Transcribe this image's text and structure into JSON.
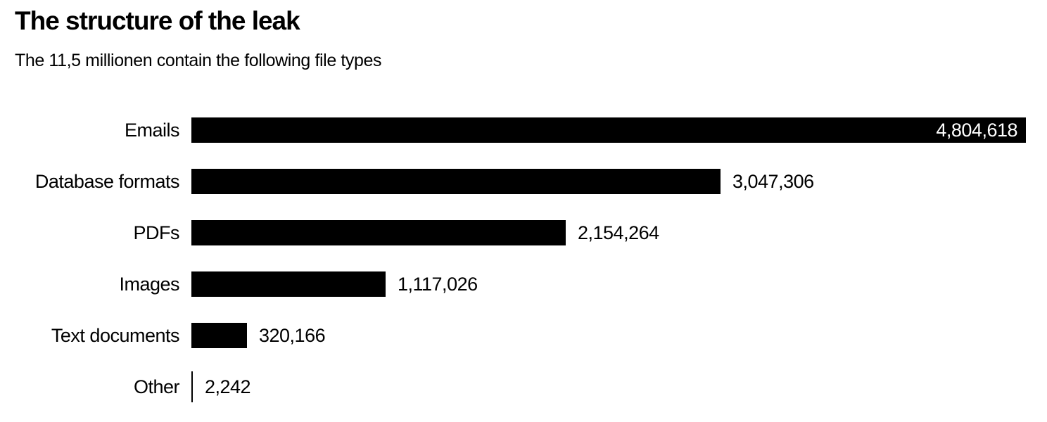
{
  "header": {
    "title": "The structure of the leak",
    "subtitle": "The 11,5 millionen contain the following file types"
  },
  "chart_data": {
    "type": "bar",
    "orientation": "horizontal",
    "title": "The structure of the leak",
    "subtitle": "The 11,5 millionen contain the following file types",
    "categories": [
      "Emails",
      "Database formats",
      "PDFs",
      "Images",
      "Text documents",
      "Other"
    ],
    "values": [
      4804618,
      3047306,
      2154264,
      1117026,
      320166,
      2242
    ],
    "value_labels": [
      "4,804,618",
      "3,047,306",
      "2,154,264",
      "1,117,026",
      "320,166",
      "2,242"
    ],
    "xlabel": "",
    "ylabel": "",
    "xlim": [
      0,
      4804618
    ],
    "grid": false,
    "legend": false,
    "bar_color": "#000000",
    "inside_value_color": "#ffffff",
    "outside_value_color": "#000000",
    "background_color": "#ffffff"
  }
}
